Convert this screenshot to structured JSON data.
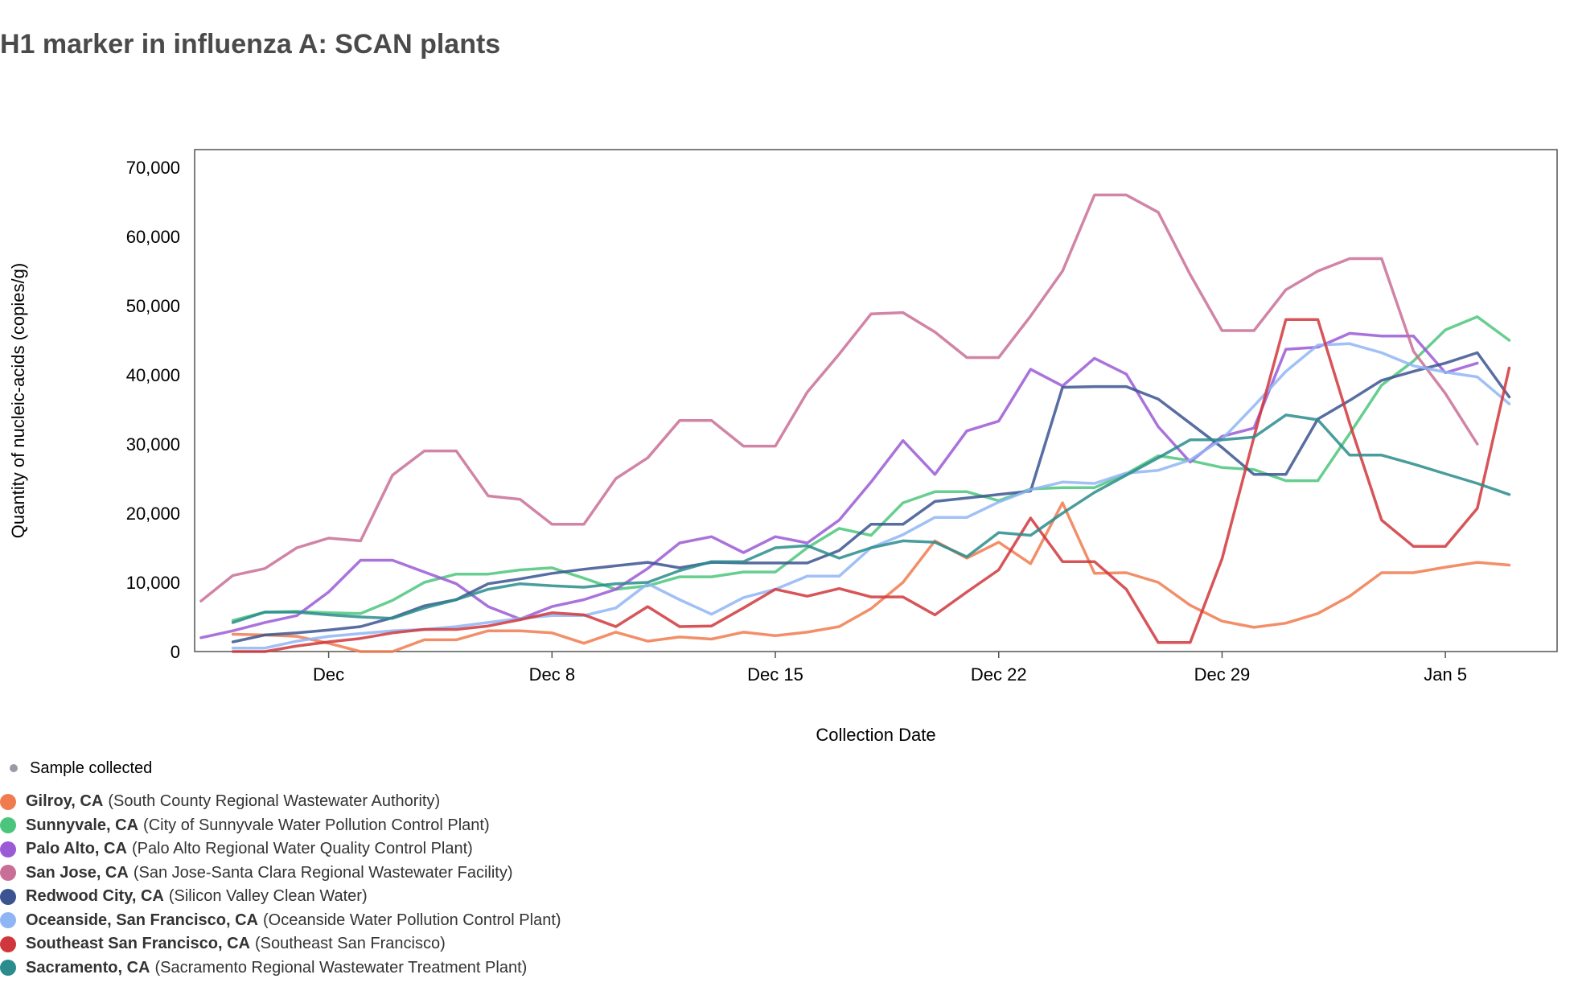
{
  "chart_data": {
    "type": "line",
    "title": "H1 marker in influenza A: SCAN plants",
    "xlabel": "Collection Date",
    "ylabel": "Quantity of nucleic-acids (copies/g)",
    "ylim": [
      0,
      70000
    ],
    "y_ticks": [
      0,
      10000,
      20000,
      30000,
      40000,
      50000,
      60000,
      70000
    ],
    "y_tick_labels": [
      "0",
      "10,000",
      "20,000",
      "30,000",
      "40,000",
      "50,000",
      "60,000",
      "70,000"
    ],
    "x_ticks": [
      1,
      8,
      15,
      22,
      29,
      36
    ],
    "x_tick_labels": [
      "Dec",
      "Dec 8",
      "Dec 15",
      "Dec 22",
      "Dec 29",
      "Jan 5"
    ],
    "xlim": [
      -3.2,
      39.5
    ],
    "x_note": "x values are days since Dec 1 (day 1 = Dec 1)",
    "sample_legend_label": "Sample collected",
    "sample_dot_color": "#9a9aa6",
    "series": [
      {
        "name": "Gilroy, CA",
        "description": "(South County Regional Wastewater Authority)",
        "color": "#f07b4f",
        "x": [
          -2,
          -1,
          0,
          1,
          2,
          3,
          4,
          5,
          6,
          7,
          8,
          9,
          10,
          11,
          12,
          13,
          14,
          15,
          16,
          17,
          18,
          19,
          20,
          21,
          22,
          23,
          24,
          25,
          26,
          27,
          28,
          29,
          30,
          31,
          32,
          33,
          34,
          35,
          36,
          37,
          38
        ],
        "y": [
          2500,
          2400,
          2200,
          1200,
          0,
          0,
          1700,
          1700,
          3000,
          3000,
          2700,
          1200,
          2800,
          1500,
          2100,
          1800,
          2800,
          2300,
          2800,
          3600,
          6200,
          10000,
          16000,
          13500,
          15800,
          12700,
          21500,
          11300,
          11400,
          10000,
          6700,
          4400,
          3500,
          4100,
          5500,
          8000,
          11400,
          11400,
          12200,
          12900,
          12500
        ]
      },
      {
        "name": "Sunnyvale, CA",
        "description": "(City of Sunnyvale Water Pollution Control Plant)",
        "color": "#4cc57c",
        "x": [
          -2,
          -1,
          0,
          1,
          2,
          3,
          4,
          5,
          6,
          7,
          8,
          9,
          10,
          11,
          12,
          13,
          14,
          15,
          16,
          17,
          18,
          19,
          20,
          21,
          22,
          23,
          24,
          25,
          26,
          27,
          28,
          29,
          30,
          31,
          32,
          33,
          34,
          35,
          36,
          37,
          38
        ],
        "y": [
          4500,
          5700,
          5800,
          5600,
          5500,
          7400,
          10000,
          11200,
          11200,
          11800,
          12100,
          10600,
          9000,
          9500,
          10800,
          10800,
          11500,
          11500,
          15000,
          17800,
          16800,
          21500,
          23100,
          23100,
          21800,
          23500,
          23700,
          23700,
          25700,
          28300,
          27600,
          26600,
          26300,
          24700,
          24700,
          31500,
          38500,
          42000,
          46500,
          48400,
          45000
        ]
      },
      {
        "name": "Palo Alto, CA",
        "description": "(Palo Alto Regional Water Quality Control Plant)",
        "color": "#9b5bd6",
        "x": [
          -3,
          -2,
          -1,
          0,
          1,
          2,
          3,
          4,
          5,
          6,
          7,
          8,
          9,
          10,
          11,
          12,
          13,
          14,
          15,
          16,
          17,
          18,
          19,
          20,
          21,
          22,
          23,
          24,
          25,
          26,
          27,
          28,
          29,
          30,
          31,
          32,
          33,
          34,
          35,
          36,
          37
        ],
        "y": [
          2000,
          3000,
          4200,
          5200,
          8600,
          13200,
          13200,
          11500,
          9800,
          6500,
          4700,
          6500,
          7500,
          9000,
          12000,
          15700,
          16600,
          14300,
          16600,
          15700,
          19000,
          24500,
          30500,
          25600,
          31900,
          33300,
          40800,
          38400,
          42400,
          40100,
          32500,
          27400,
          31100,
          32300,
          43700,
          44000,
          46000,
          45600,
          45600,
          40300,
          41700
        ]
      },
      {
        "name": "San Jose, CA",
        "description": "(San Jose-Santa Clara Regional Wastewater Facility)",
        "color": "#c96f97",
        "x": [
          -3,
          -2,
          -1,
          0,
          1,
          2,
          3,
          4,
          5,
          6,
          7,
          8,
          9,
          10,
          11,
          12,
          13,
          14,
          15,
          16,
          17,
          18,
          19,
          20,
          21,
          22,
          23,
          24,
          25,
          26,
          27,
          28,
          29,
          30,
          31,
          32,
          33,
          34,
          35,
          36,
          37
        ],
        "y": [
          7300,
          11000,
          12000,
          15000,
          16400,
          16000,
          25500,
          29000,
          29000,
          22500,
          22000,
          18400,
          18400,
          25000,
          28000,
          33400,
          33400,
          29700,
          29700,
          37500,
          43000,
          48800,
          49000,
          46200,
          42500,
          42500,
          48500,
          55000,
          66000,
          66000,
          63500,
          54500,
          46400,
          46400,
          52300,
          55000,
          56800,
          56800,
          43400,
          37300,
          30000
        ]
      },
      {
        "name": "Redwood City, CA",
        "description": "(Silicon Valley Clean Water)",
        "color": "#3b5491",
        "x": [
          -2,
          -1,
          0,
          1,
          2,
          3,
          4,
          5,
          6,
          7,
          8,
          9,
          10,
          11,
          12,
          13,
          14,
          15,
          16,
          17,
          18,
          19,
          20,
          21,
          22,
          23,
          24,
          25,
          26,
          27,
          28,
          29,
          30,
          31,
          32,
          33,
          34,
          35,
          36,
          37,
          38
        ],
        "y": [
          1400,
          2400,
          2700,
          3100,
          3600,
          4900,
          6600,
          7500,
          9800,
          10500,
          11300,
          11900,
          12400,
          12900,
          12100,
          12900,
          12800,
          12800,
          12800,
          14600,
          18400,
          18400,
          21700,
          22200,
          22700,
          23200,
          38200,
          38300,
          38300,
          36500,
          33000,
          29500,
          25600,
          25600,
          33600,
          36300,
          39200,
          40500,
          41700,
          43200,
          36800
        ]
      },
      {
        "name": "Oceanside, San Francisco, CA",
        "description": "(Oceanside Water Pollution Control Plant)",
        "color": "#8fb5f5",
        "x": [
          -2,
          -1,
          0,
          1,
          2,
          3,
          4,
          5,
          6,
          7,
          8,
          9,
          10,
          11,
          12,
          13,
          14,
          15,
          16,
          17,
          18,
          19,
          20,
          21,
          22,
          23,
          24,
          25,
          26,
          27,
          28,
          29,
          30,
          31,
          32,
          33,
          34,
          35,
          36,
          37,
          38
        ],
        "y": [
          500,
          500,
          1500,
          2200,
          2600,
          3000,
          3200,
          3600,
          4200,
          4800,
          5200,
          5200,
          6300,
          9800,
          7500,
          5400,
          7800,
          9000,
          10900,
          10900,
          15000,
          16900,
          19400,
          19400,
          21600,
          23400,
          24500,
          24300,
          25800,
          26200,
          27700,
          30700,
          35500,
          40500,
          44300,
          44500,
          43200,
          41300,
          40400,
          39700,
          35800
        ]
      },
      {
        "name": "Southeast San Francisco, CA",
        "description": "(Southeast San Francisco)",
        "color": "#d0373c",
        "x": [
          -2,
          -1,
          0,
          1,
          2,
          3,
          4,
          5,
          6,
          7,
          8,
          9,
          10,
          11,
          12,
          13,
          14,
          15,
          16,
          17,
          18,
          19,
          20,
          21,
          22,
          23,
          24,
          25,
          26,
          27,
          28,
          29,
          30,
          31,
          32,
          33,
          34,
          35,
          36,
          37,
          38
        ],
        "y": [
          0,
          0,
          800,
          1400,
          1900,
          2700,
          3200,
          3200,
          3700,
          4600,
          5600,
          5300,
          3600,
          6500,
          3600,
          3700,
          6300,
          9000,
          8000,
          9100,
          7900,
          7900,
          5300,
          8600,
          11800,
          19300,
          13000,
          13000,
          9000,
          1300,
          1300,
          13400,
          31000,
          48000,
          48000,
          33000,
          19000,
          15200,
          15200,
          20700,
          41000
        ]
      },
      {
        "name": "Sacramento, CA",
        "description": "(Sacramento Regional Wastewater Treatment Plant)",
        "color": "#2a8c8c",
        "x": [
          -2,
          -1,
          0,
          1,
          2,
          3,
          4,
          5,
          6,
          7,
          8,
          9,
          10,
          11,
          12,
          13,
          14,
          15,
          16,
          17,
          18,
          19,
          20,
          21,
          22,
          23,
          24,
          25,
          26,
          27,
          28,
          29,
          30,
          31,
          32,
          33,
          34,
          35,
          36,
          37,
          38
        ],
        "y": [
          4200,
          5700,
          5700,
          5300,
          5000,
          4800,
          6300,
          7500,
          9000,
          9800,
          9500,
          9300,
          9800,
          10000,
          11700,
          13000,
          13000,
          15000,
          15300,
          13500,
          15000,
          16000,
          15800,
          13700,
          17200,
          16800,
          20000,
          23000,
          25500,
          28000,
          30600,
          30600,
          31000,
          34200,
          33500,
          28400,
          28400,
          27100,
          25700,
          24300,
          22700
        ]
      }
    ]
  }
}
